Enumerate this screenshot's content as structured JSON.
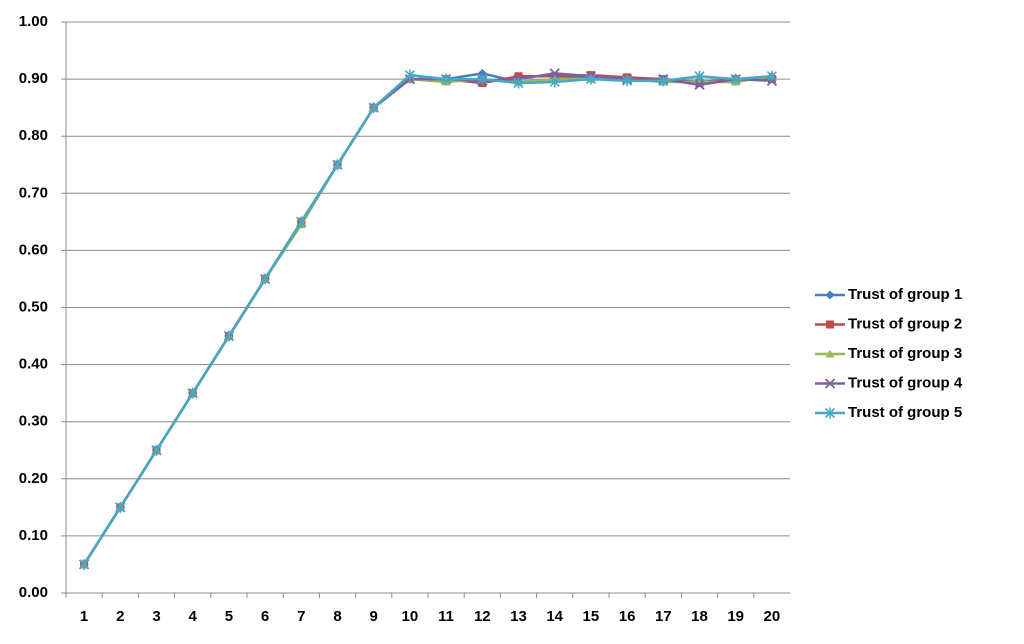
{
  "chart_data": {
    "type": "line",
    "categories": [
      "1",
      "2",
      "3",
      "4",
      "5",
      "6",
      "7",
      "8",
      "9",
      "10",
      "11",
      "12",
      "13",
      "14",
      "15",
      "16",
      "17",
      "18",
      "19",
      "20"
    ],
    "series": [
      {
        "name": "Trust of group 1",
        "color": "#4a7ebb",
        "marker": "diamond",
        "values": [
          0.05,
          0.15,
          0.25,
          0.35,
          0.45,
          0.55,
          0.65,
          0.75,
          0.85,
          0.9,
          0.9,
          0.91,
          0.895,
          0.9,
          0.905,
          0.9,
          0.9,
          0.895,
          0.9,
          0.905
        ]
      },
      {
        "name": "Trust of group 2",
        "color": "#be4b48",
        "marker": "square",
        "values": [
          0.05,
          0.15,
          0.25,
          0.35,
          0.45,
          0.55,
          0.65,
          0.75,
          0.85,
          0.9,
          0.9,
          0.893,
          0.905,
          0.905,
          0.907,
          0.903,
          0.9,
          0.893,
          0.9,
          0.9
        ]
      },
      {
        "name": "Trust of group 3",
        "color": "#98b954",
        "marker": "triangle",
        "values": [
          0.05,
          0.15,
          0.25,
          0.35,
          0.45,
          0.55,
          0.645,
          0.75,
          0.85,
          0.9,
          0.895,
          0.9,
          0.895,
          0.9,
          0.9,
          0.9,
          0.895,
          0.895,
          0.895,
          0.905
        ]
      },
      {
        "name": "Trust of group 4",
        "color": "#7d60a0",
        "marker": "x",
        "values": [
          0.05,
          0.15,
          0.25,
          0.35,
          0.45,
          0.55,
          0.65,
          0.75,
          0.85,
          0.9,
          0.9,
          0.897,
          0.9,
          0.91,
          0.905,
          0.9,
          0.9,
          0.89,
          0.9,
          0.897
        ]
      },
      {
        "name": "Trust of group 5",
        "color": "#46aac5",
        "marker": "star",
        "values": [
          0.05,
          0.15,
          0.25,
          0.35,
          0.45,
          0.55,
          0.65,
          0.75,
          0.85,
          0.907,
          0.9,
          0.9,
          0.893,
          0.895,
          0.9,
          0.897,
          0.897,
          0.905,
          0.9,
          0.905
        ]
      }
    ],
    "ylim": [
      0,
      1
    ],
    "yticks": [
      {
        "value": 0,
        "label": "0.00"
      },
      {
        "value": 0.1,
        "label": "0.10"
      },
      {
        "value": 0.2,
        "label": "0.20"
      },
      {
        "value": 0.3,
        "label": "0.30"
      },
      {
        "value": 0.4,
        "label": "0.40"
      },
      {
        "value": 0.5,
        "label": "0.50"
      },
      {
        "value": 0.6,
        "label": "0.60"
      },
      {
        "value": 0.7,
        "label": "0.70"
      },
      {
        "value": 0.8,
        "label": "0.80"
      },
      {
        "value": 0.9,
        "label": "0.90"
      },
      {
        "value": 1,
        "label": "1.00"
      }
    ],
    "grid": true,
    "legend": "right"
  }
}
